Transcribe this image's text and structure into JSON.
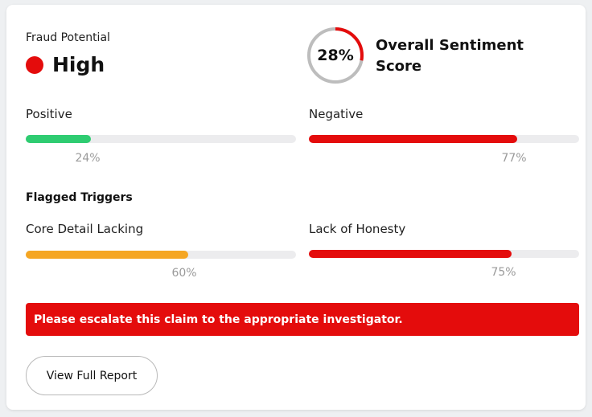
{
  "fraud": {
    "label": "Fraud Potential",
    "level": "High",
    "indicator_color": "#e40c0c"
  },
  "sentiment": {
    "score_text": "28%",
    "score_fraction": 0.28,
    "title": "Overall Sentiment Score",
    "ring_color": "#e40c0c",
    "track_color": "#bdbdbd"
  },
  "metrics": {
    "positive": {
      "label": "Positive",
      "pct_text": "24%",
      "value": 0.24,
      "color": "#2ecc71"
    },
    "negative": {
      "label": "Negative",
      "pct_text": "77%",
      "value": 0.77,
      "color": "#e40c0c"
    }
  },
  "flagged": {
    "title": "Flagged Triggers",
    "core_detail": {
      "label": "Core Detail Lacking",
      "pct_text": "60%",
      "value": 0.6,
      "color": "#f5a623"
    },
    "honesty": {
      "label": "Lack of Honesty",
      "pct_text": "75%",
      "value": 0.75,
      "color": "#e40c0c"
    }
  },
  "alert": {
    "message": "Please escalate this claim to the appropriate investigator.",
    "color": "#e40c0c"
  },
  "actions": {
    "view_report_label": "View Full Report"
  }
}
